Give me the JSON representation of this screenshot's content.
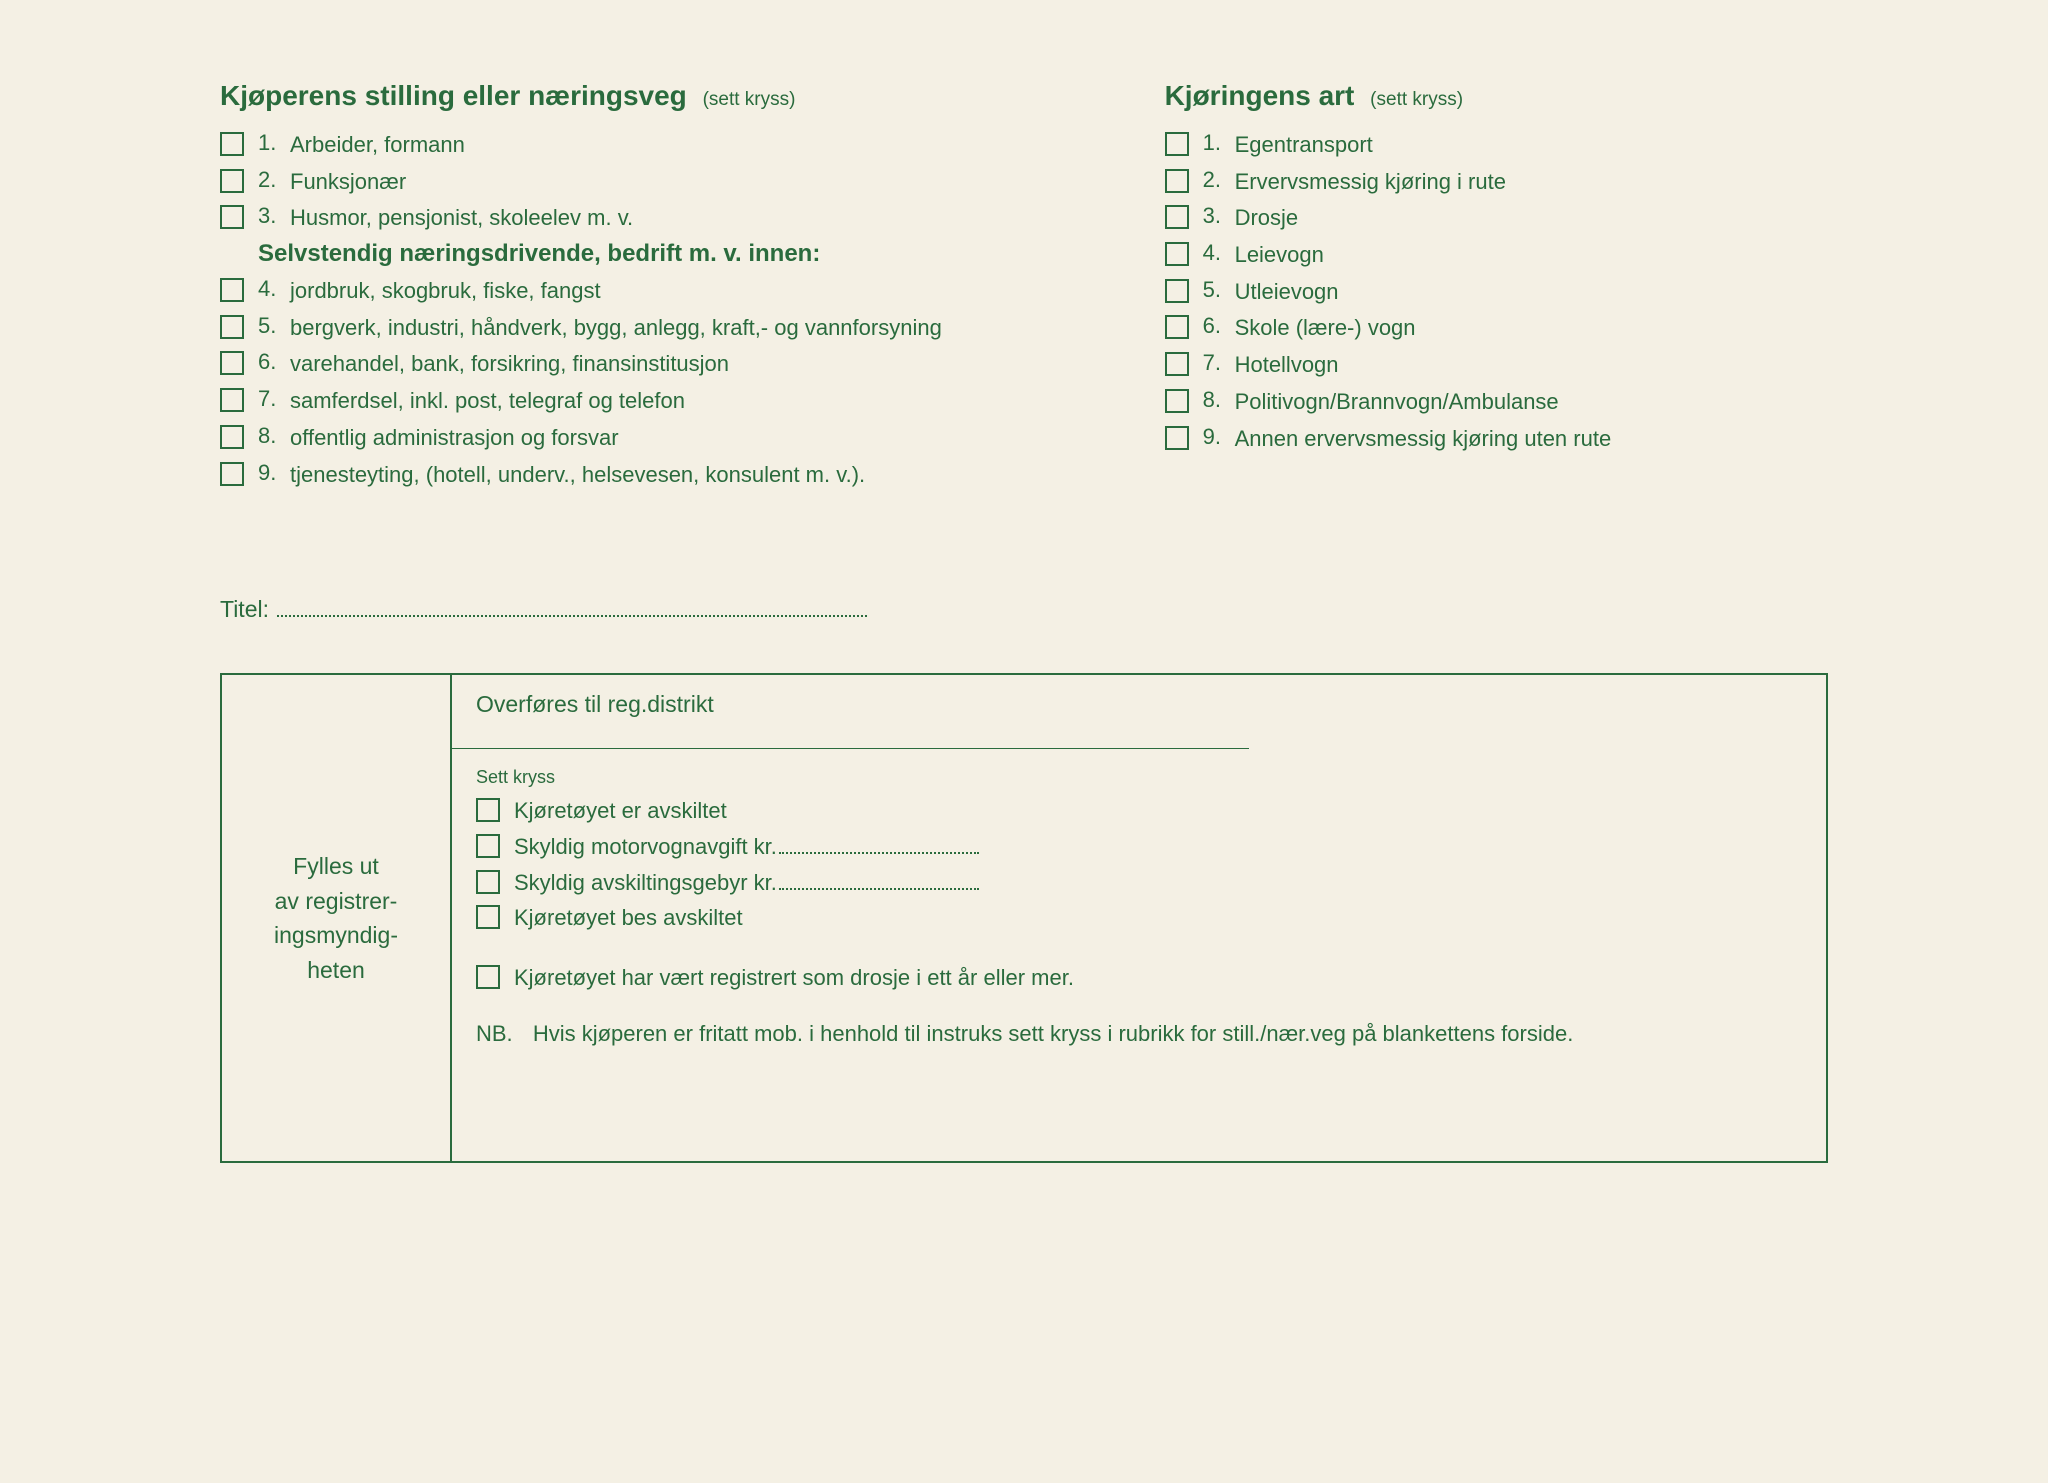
{
  "colors": {
    "ink": "#2a6b3d",
    "paper": "#f4f0e4",
    "border": "#000000"
  },
  "left": {
    "title": "Kjøperens stilling eller næringsveg",
    "hint": "(sett kryss)",
    "items_a": [
      {
        "num": "1.",
        "label": "Arbeider, formann"
      },
      {
        "num": "2.",
        "label": "Funksjonær"
      },
      {
        "num": "3.",
        "label": "Husmor, pensjonist, skoleelev m. v."
      }
    ],
    "subheading": "Selvstendig næringsdrivende, bedrift m. v. innen:",
    "items_b": [
      {
        "num": "4.",
        "label": "jordbruk, skogbruk, fiske, fangst"
      },
      {
        "num": "5.",
        "label": "bergverk, industri, håndverk, bygg, anlegg, kraft,- og vannforsyning"
      },
      {
        "num": "6.",
        "label": "varehandel, bank, forsikring, finansinstitusjon"
      },
      {
        "num": "7.",
        "label": "samferdsel, inkl. post, telegraf og telefon"
      },
      {
        "num": "8.",
        "label": "offentlig administrasjon og forsvar"
      },
      {
        "num": "9.",
        "label": "tjenesteyting, (hotell, underv., helsevesen, konsulent m. v.)."
      }
    ]
  },
  "right": {
    "title": "Kjøringens art",
    "hint": "(sett kryss)",
    "items": [
      {
        "num": "1.",
        "label": "Egentransport"
      },
      {
        "num": "2.",
        "label": "Ervervsmessig kjøring i rute"
      },
      {
        "num": "3.",
        "label": "Drosje"
      },
      {
        "num": "4.",
        "label": "Leievogn"
      },
      {
        "num": "5.",
        "label": "Utleievogn"
      },
      {
        "num": "6.",
        "label": "Skole (lære-) vogn"
      },
      {
        "num": "7.",
        "label": "Hotellvogn"
      },
      {
        "num": "8.",
        "label": "Politivogn/Brannvogn/Ambulanse"
      },
      {
        "num": "9.",
        "label": "Annen ervervsmessig kjøring uten rute"
      }
    ]
  },
  "titleLine": "Titel:",
  "reg": {
    "leftText": "Fylles ut av registrer-ingsmyndig-heten",
    "topRow": "Overføres til reg.distrikt",
    "settKryss": "Sett kryss",
    "checks": [
      {
        "label": "Kjøretøyet er avskiltet",
        "dotted": false
      },
      {
        "label": "Skyldig motorvognavgift kr.",
        "dotted": true
      },
      {
        "label": "Skyldig avskiltingsgebyr kr.",
        "dotted": true
      },
      {
        "label": "Kjøretøyet bes avskiltet",
        "dotted": false
      }
    ],
    "lastCheck": "Kjøretøyet har vært registrert som drosje i ett år eller mer.",
    "nbLabel": "NB.",
    "nbText": "Hvis kjøperen er fritatt mob. i henhold til instruks sett kryss i rubrikk for still./nær.veg på blankettens forside."
  }
}
